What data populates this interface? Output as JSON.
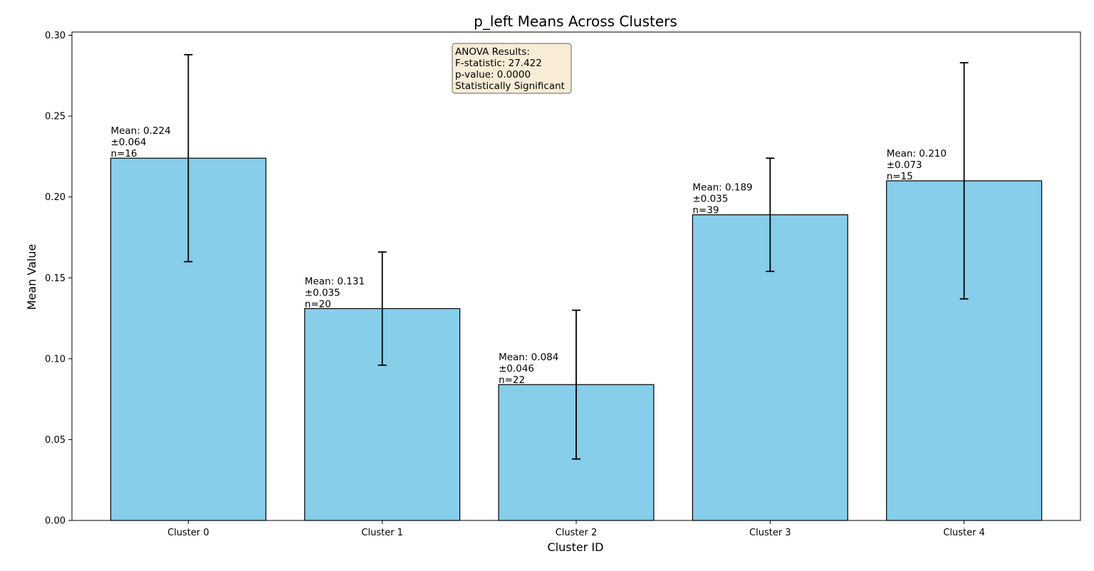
{
  "chart_data": {
    "type": "bar",
    "title": "p_left Means Across Clusters",
    "xlabel": "Cluster ID",
    "ylabel": "Mean Value",
    "categories": [
      "Cluster 0",
      "Cluster 1",
      "Cluster 2",
      "Cluster 3",
      "Cluster 4"
    ],
    "values": [
      0.224,
      0.131,
      0.084,
      0.189,
      0.21
    ],
    "errors": [
      0.064,
      0.035,
      0.046,
      0.035,
      0.073
    ],
    "n": [
      16,
      20,
      22,
      39,
      15
    ],
    "bar_labels": [
      [
        "Mean: 0.224",
        "±0.064",
        "n=16"
      ],
      [
        "Mean: 0.131",
        "±0.035",
        "n=20"
      ],
      [
        "Mean: 0.084",
        "±0.046",
        "n=22"
      ],
      [
        "Mean: 0.189",
        "±0.035",
        "n=39"
      ],
      [
        "Mean: 0.210",
        "±0.073",
        "n=15"
      ]
    ],
    "ylim": [
      0,
      0.302
    ],
    "yticks": [
      0.0,
      0.05,
      0.1,
      0.15,
      0.2,
      0.25,
      0.3
    ],
    "ytick_labels": [
      "0.00",
      "0.05",
      "0.10",
      "0.15",
      "0.20",
      "0.25",
      "0.30"
    ],
    "grid": false,
    "annotation": {
      "lines": [
        "ANOVA Results:",
        "F-statistic: 27.422",
        "p-value: 0.0000",
        "Statistically Significant"
      ],
      "placement": "top-center"
    },
    "colors": {
      "bar_fill": "#87CEEB",
      "bar_edge": "#000000",
      "error_bar": "#000000",
      "annotation_fill": "#F8ECD6",
      "annotation_edge": "#7f7f7f"
    }
  }
}
